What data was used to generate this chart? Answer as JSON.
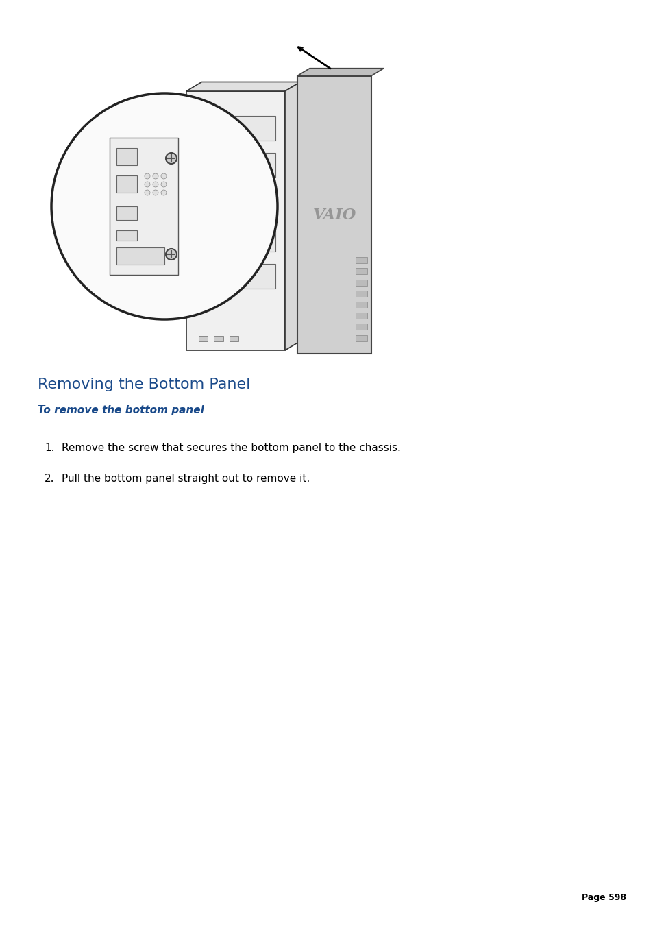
{
  "title": "Removing the Bottom Panel",
  "subtitle": "To remove the bottom panel",
  "steps": [
    "Remove the screw that secures the bottom panel to the chassis.",
    "Pull the bottom panel straight out to remove it."
  ],
  "page_number": "Page 598",
  "title_color": "#1a4a8a",
  "subtitle_color": "#1a4a8a",
  "step_color": "#000000",
  "background_color": "#ffffff",
  "title_fontsize": 16,
  "subtitle_fontsize": 11,
  "step_fontsize": 11,
  "page_fontsize": 9
}
